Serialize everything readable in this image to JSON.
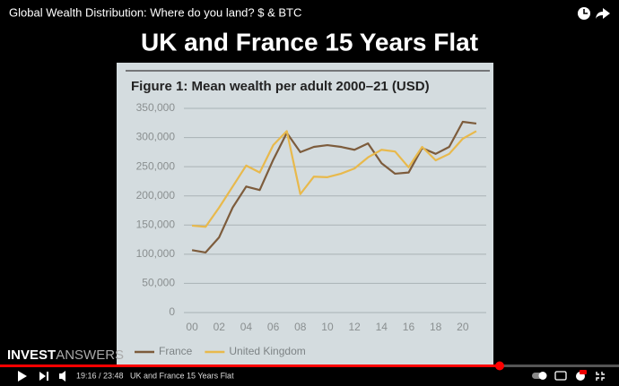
{
  "video_title": "Global Wealth Distribution: Where do you land? $ & BTC",
  "slide_heading": "UK and France 15 Years Flat",
  "logo": {
    "part1": "INVEST",
    "part2": "ANSWERS"
  },
  "player": {
    "time_display": "19:16 / 23:48",
    "chapter": "UK and France 15 Years Flat"
  },
  "chart_data": {
    "type": "line",
    "title": "Figure 1: Mean wealth per adult 2000–21 (USD)",
    "x": [
      2000,
      2001,
      2002,
      2003,
      2004,
      2005,
      2006,
      2007,
      2008,
      2009,
      2010,
      2011,
      2012,
      2013,
      2014,
      2015,
      2016,
      2017,
      2018,
      2019,
      2020,
      2021
    ],
    "series": [
      {
        "name": "France",
        "color": "#7d5c3c",
        "values": [
          107000,
          103000,
          129000,
          180000,
          216000,
          210000,
          262000,
          308000,
          275000,
          284000,
          287000,
          284000,
          279000,
          290000,
          256000,
          238000,
          240000,
          282000,
          272000,
          284000,
          327000,
          324000
        ]
      },
      {
        "name": "United Kingdom",
        "color": "#e8b94c",
        "values": [
          149000,
          147000,
          180000,
          216000,
          252000,
          240000,
          287000,
          311000,
          203000,
          233000,
          232000,
          238000,
          247000,
          266000,
          279000,
          276000,
          249000,
          284000,
          261000,
          272000,
          298000,
          311000
        ]
      }
    ],
    "xlim": [
      1999,
      2022
    ],
    "xticks": [
      {
        "value": 2000,
        "label": "00"
      },
      {
        "value": 2002,
        "label": "02"
      },
      {
        "value": 2004,
        "label": "04"
      },
      {
        "value": 2006,
        "label": "06"
      },
      {
        "value": 2008,
        "label": "08"
      },
      {
        "value": 2010,
        "label": "10"
      },
      {
        "value": 2012,
        "label": "12"
      },
      {
        "value": 2014,
        "label": "14"
      },
      {
        "value": 2016,
        "label": "16"
      },
      {
        "value": 2018,
        "label": "18"
      },
      {
        "value": 2020,
        "label": "20"
      }
    ],
    "ylim": [
      0,
      350000
    ],
    "yticks": [
      0,
      {
        "value": 50000,
        "label": "50,000"
      },
      {
        "value": 100000,
        "label": "100,000"
      },
      {
        "value": 150000,
        "label": "150,000"
      },
      {
        "value": 200000,
        "label": "200,000"
      },
      {
        "value": 250000,
        "label": "250,000"
      },
      {
        "value": 300000,
        "label": "300,000"
      },
      {
        "value": 350000,
        "label": "350,000"
      }
    ],
    "grid": true
  }
}
